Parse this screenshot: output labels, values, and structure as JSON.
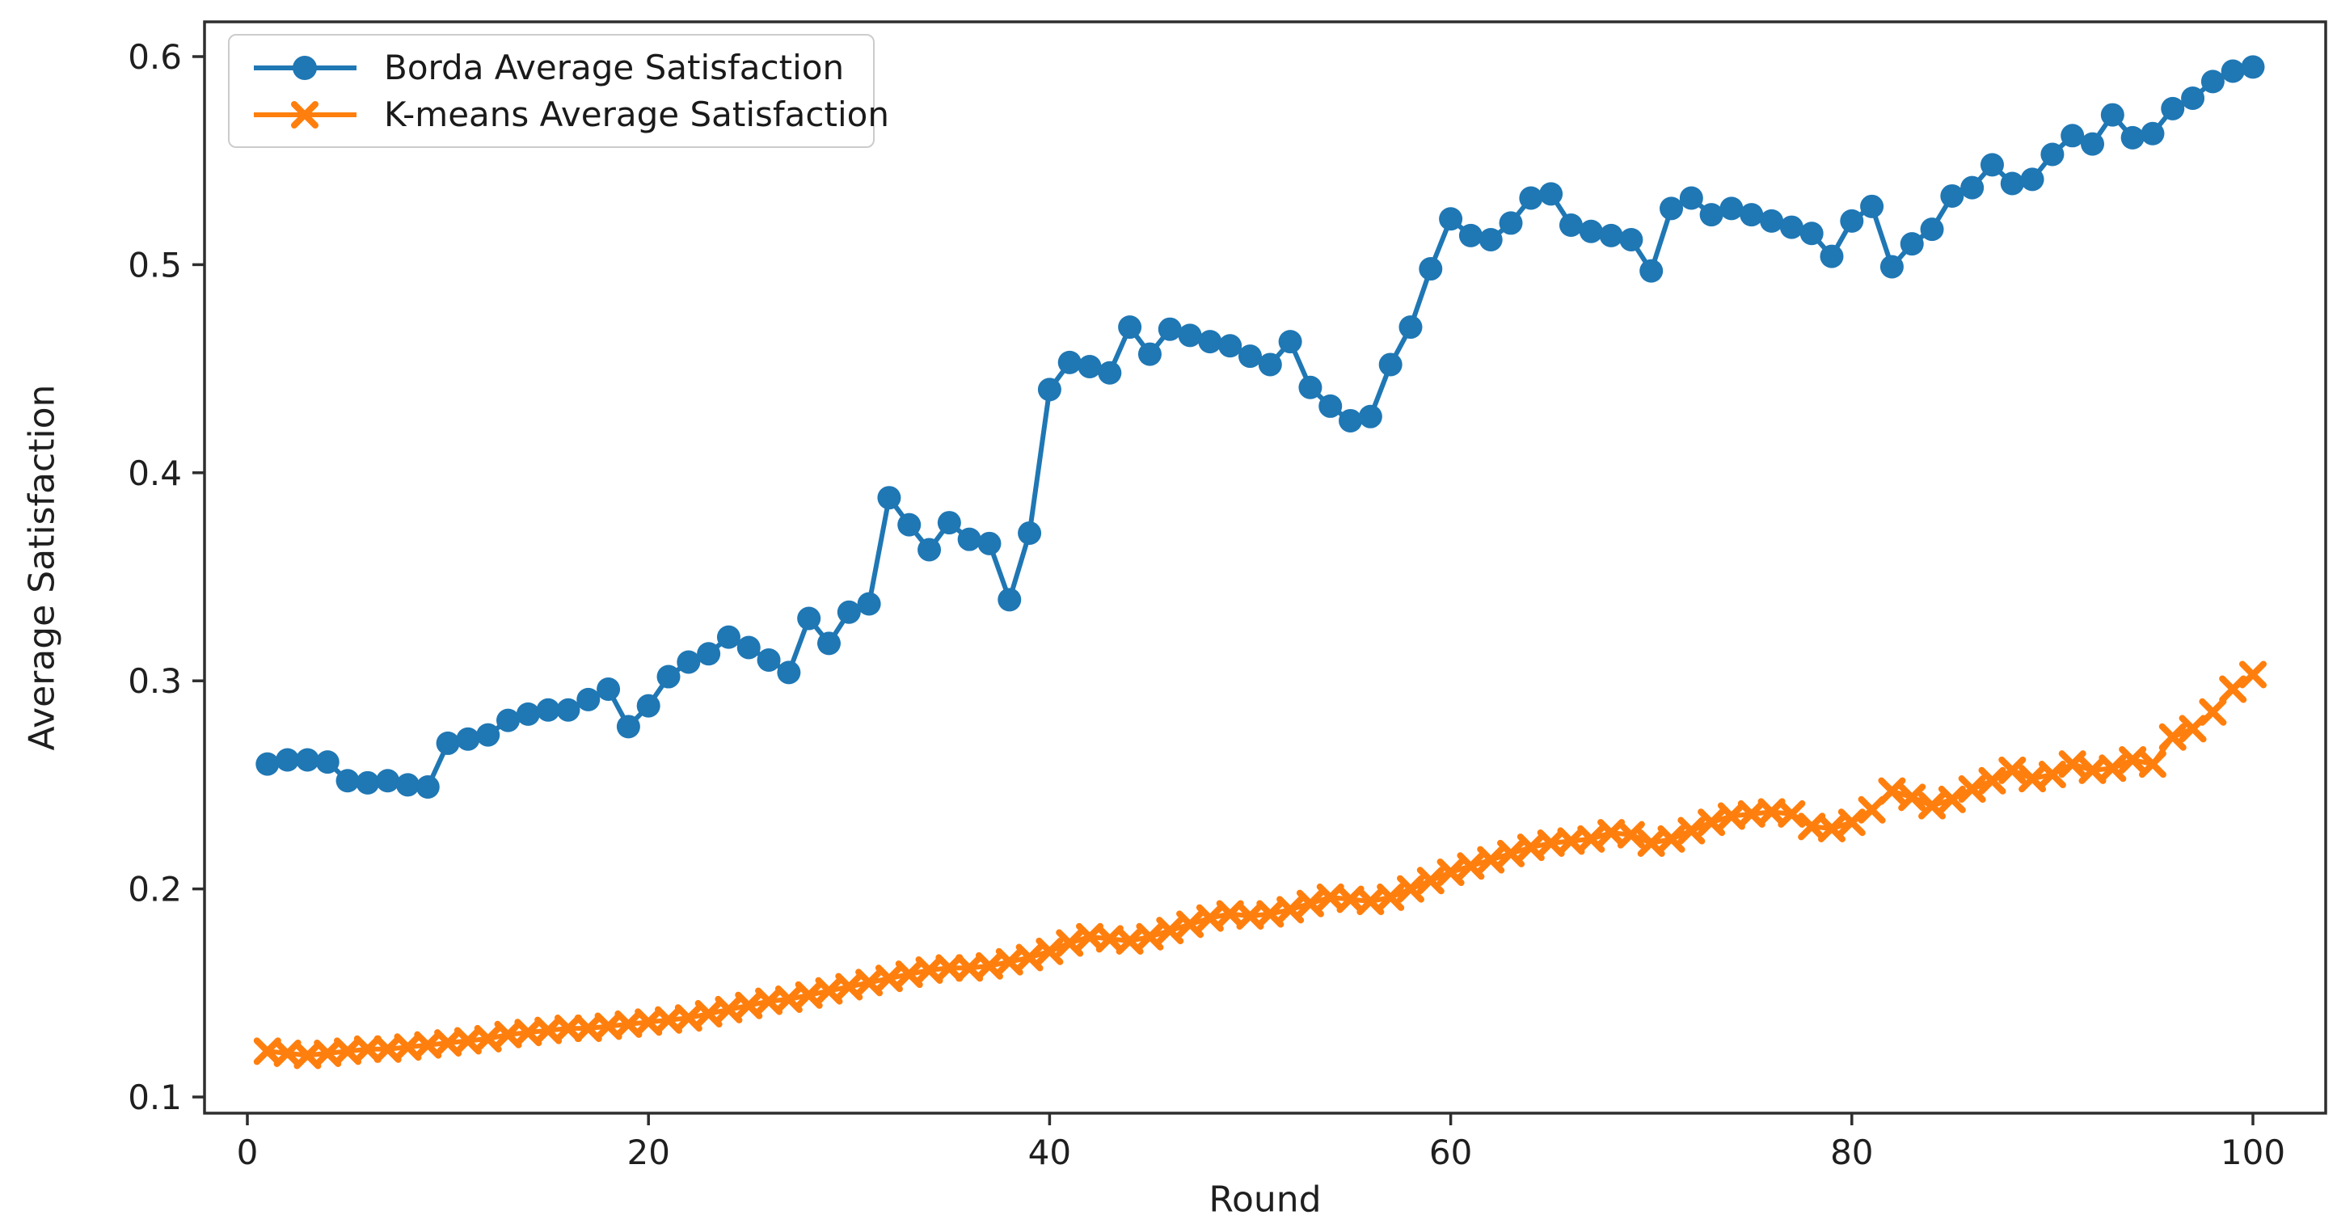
{
  "chart_data": {
    "type": "line",
    "title": "",
    "xlabel": "Round",
    "ylabel": "Average Satisfaction",
    "xticks": [
      0,
      20,
      40,
      60,
      80,
      100
    ],
    "yticks": [
      0.1,
      0.2,
      0.3,
      0.4,
      0.5,
      0.6
    ],
    "xlim": [
      -3,
      104
    ],
    "ylim": [
      0.093,
      0.617
    ],
    "grid": false,
    "legend_position": "upper left",
    "x": [
      1,
      2,
      3,
      4,
      5,
      6,
      7,
      8,
      9,
      10,
      11,
      12,
      13,
      14,
      15,
      16,
      17,
      18,
      19,
      20,
      21,
      22,
      23,
      24,
      25,
      26,
      27,
      28,
      29,
      30,
      31,
      32,
      33,
      34,
      35,
      36,
      37,
      38,
      39,
      40,
      41,
      42,
      43,
      44,
      45,
      46,
      47,
      48,
      49,
      50,
      51,
      52,
      53,
      54,
      55,
      56,
      57,
      58,
      59,
      60,
      61,
      62,
      63,
      64,
      65,
      66,
      67,
      68,
      69,
      70,
      71,
      72,
      73,
      74,
      75,
      76,
      77,
      78,
      79,
      80,
      81,
      82,
      83,
      84,
      85,
      86,
      87,
      88,
      89,
      90,
      91,
      92,
      93,
      94,
      95,
      96,
      97,
      98,
      99,
      100
    ],
    "series": [
      {
        "name": "Borda Average Satisfaction",
        "color": "#1f77b4",
        "marker": "o",
        "values": [
          0.26,
          0.262,
          0.262,
          0.261,
          0.252,
          0.251,
          0.252,
          0.25,
          0.249,
          0.27,
          0.272,
          0.274,
          0.281,
          0.284,
          0.286,
          0.286,
          0.291,
          0.296,
          0.278,
          0.288,
          0.302,
          0.309,
          0.313,
          0.321,
          0.316,
          0.31,
          0.304,
          0.33,
          0.318,
          0.333,
          0.337,
          0.388,
          0.375,
          0.363,
          0.376,
          0.368,
          0.366,
          0.339,
          0.371,
          0.44,
          0.453,
          0.451,
          0.448,
          0.47,
          0.457,
          0.469,
          0.466,
          0.463,
          0.461,
          0.456,
          0.452,
          0.463,
          0.441,
          0.432,
          0.425,
          0.427,
          0.452,
          0.47,
          0.498,
          0.522,
          0.514,
          0.512,
          0.52,
          0.532,
          0.534,
          0.519,
          0.516,
          0.514,
          0.512,
          0.497,
          0.527,
          0.532,
          0.524,
          0.527,
          0.524,
          0.521,
          0.518,
          0.515,
          0.504,
          0.521,
          0.528,
          0.499,
          0.51,
          0.517,
          0.533,
          0.537,
          0.548,
          0.539,
          0.541,
          0.553,
          0.562,
          0.558,
          0.572,
          0.561,
          0.563,
          0.575,
          0.58,
          0.588,
          0.593,
          0.595
        ]
      },
      {
        "name": "K-means Average Satisfaction",
        "color": "#ff7f0e",
        "marker": "x",
        "values": [
          0.122,
          0.121,
          0.12,
          0.121,
          0.122,
          0.123,
          0.123,
          0.124,
          0.125,
          0.126,
          0.127,
          0.128,
          0.13,
          0.131,
          0.132,
          0.133,
          0.133,
          0.134,
          0.135,
          0.136,
          0.137,
          0.138,
          0.14,
          0.142,
          0.144,
          0.146,
          0.147,
          0.149,
          0.151,
          0.153,
          0.155,
          0.157,
          0.159,
          0.161,
          0.162,
          0.162,
          0.163,
          0.165,
          0.167,
          0.17,
          0.174,
          0.177,
          0.176,
          0.175,
          0.177,
          0.18,
          0.183,
          0.186,
          0.188,
          0.187,
          0.188,
          0.19,
          0.193,
          0.196,
          0.195,
          0.194,
          0.196,
          0.2,
          0.204,
          0.208,
          0.211,
          0.214,
          0.217,
          0.22,
          0.222,
          0.223,
          0.224,
          0.227,
          0.226,
          0.222,
          0.224,
          0.228,
          0.232,
          0.235,
          0.236,
          0.237,
          0.236,
          0.23,
          0.229,
          0.232,
          0.238,
          0.247,
          0.244,
          0.24,
          0.243,
          0.248,
          0.252,
          0.257,
          0.253,
          0.255,
          0.26,
          0.257,
          0.258,
          0.262,
          0.26,
          0.273,
          0.277,
          0.285,
          0.296,
          0.303
        ]
      }
    ],
    "colors": {
      "spine": "#2e2e2e",
      "tick_label": "#1f1f1f",
      "plot_background": "#ffffff",
      "legend_border": "#cccccc"
    }
  }
}
